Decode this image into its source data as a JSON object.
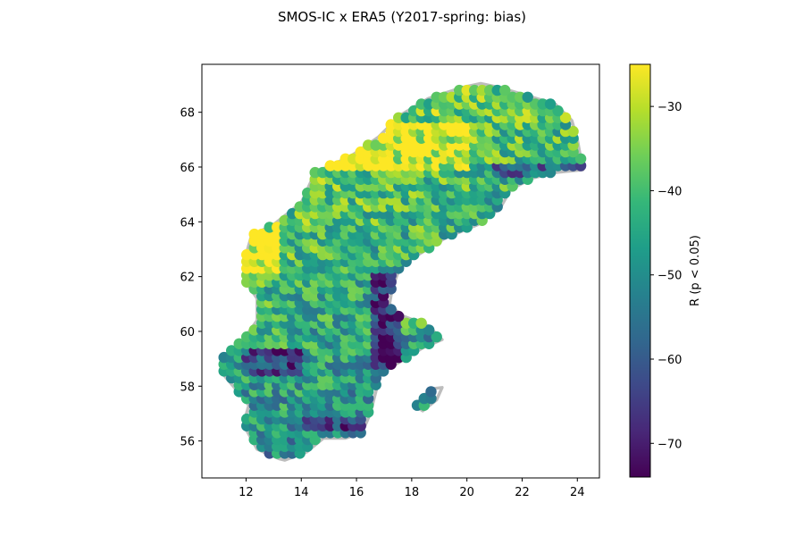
{
  "title": "SMOS-IC x ERA5 (Y2017-spring: bias)",
  "map": {
    "x_ticks": [
      "12",
      "14",
      "16",
      "18",
      "20",
      "22",
      "24"
    ],
    "x_tick_values": [
      12,
      14,
      16,
      18,
      20,
      22,
      24
    ],
    "y_ticks": [
      "56",
      "58",
      "60",
      "62",
      "64",
      "66",
      "68"
    ],
    "y_tick_values": [
      56,
      58,
      60,
      62,
      64,
      66,
      68
    ],
    "xlim": [
      10.4,
      24.8
    ],
    "ylim": [
      54.65,
      69.75
    ],
    "coastline_color": "#bdbdbd",
    "marker": "filled-circle"
  },
  "colorbar": {
    "label": "R (p < 0.05)",
    "ticks": [
      "−30",
      "−40",
      "−50",
      "−60",
      "−70"
    ],
    "tick_values": [
      -30,
      -40,
      -50,
      -60,
      -70
    ],
    "range": [
      -74,
      -25
    ],
    "colormap": "viridis",
    "colors": [
      "#440154",
      "#482878",
      "#3e4989",
      "#31688e",
      "#26828e",
      "#1f9e89",
      "#35b779",
      "#6ece58",
      "#b5de2b",
      "#fde725"
    ]
  }
}
